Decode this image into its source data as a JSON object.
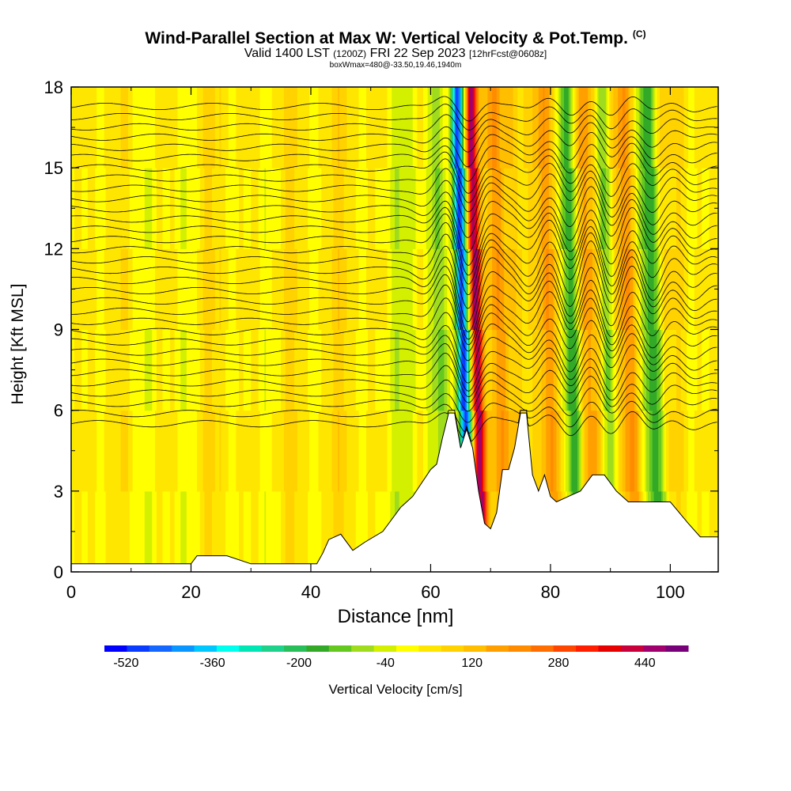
{
  "chart_data": {
    "type": "heatmap",
    "title": "Wind-Parallel Section at Max W: Vertical Velocity & Pot.Temp.",
    "title_mark": "(C)",
    "subtitle_main": "Valid 1400 LST",
    "subtitle_z": "(1200Z)",
    "subtitle_date": "FRI 22 Sep 2023",
    "subtitle_fcst": "[12hrFcst@0608z]",
    "subtitle2": "boxWmax=480@-33.50,19.46,1940m",
    "xlabel": "Distance [nm]",
    "ylabel": "Height [Kft MSL]",
    "xlim": [
      0,
      108
    ],
    "ylim": [
      0,
      18
    ],
    "xticks": [
      "0",
      "20",
      "40",
      "60",
      "80",
      "100"
    ],
    "yticks": [
      "0",
      "3",
      "6",
      "9",
      "12",
      "15",
      "18"
    ],
    "colorbar": {
      "label": "Vertical Velocity [cm/s]",
      "tick_labels": [
        "-520",
        "-360",
        "-200",
        "-40",
        "120",
        "280",
        "440"
      ],
      "bounds": [
        -560,
        520
      ],
      "colors": [
        "#0000ff",
        "#0a3cff",
        "#1468ff",
        "#0a96ff",
        "#00c8ff",
        "#00ffee",
        "#00e6b4",
        "#1ed28c",
        "#28be5a",
        "#32aa28",
        "#64c81e",
        "#a0dc1e",
        "#d2f000",
        "#ffff00",
        "#ffe600",
        "#ffd200",
        "#ffbe00",
        "#ffa000",
        "#ff8c00",
        "#ff6e00",
        "#ff4600",
        "#ff1e00",
        "#e60000",
        "#c8003c",
        "#a0006e",
        "#780078"
      ]
    },
    "terrain_profile": {
      "distance_nm": [
        0,
        20,
        21,
        26,
        30,
        33,
        41,
        42,
        43,
        45,
        47,
        49,
        52,
        55,
        57,
        60,
        61,
        62,
        63,
        64,
        65,
        66,
        67,
        68,
        69,
        70,
        71,
        72,
        73,
        74,
        75,
        76,
        77,
        78,
        79,
        80,
        81,
        83,
        85,
        87,
        89,
        91,
        93,
        95,
        97,
        100,
        103,
        105,
        108
      ],
      "height_kft": [
        0.3,
        0.3,
        0.6,
        0.6,
        0.3,
        0.3,
        0.3,
        0.7,
        1.2,
        1.4,
        0.8,
        1.1,
        1.5,
        2.4,
        2.8,
        3.8,
        4.0,
        5.0,
        5.9,
        5.9,
        4.6,
        5.3,
        4.6,
        3.0,
        1.8,
        1.6,
        2.2,
        3.8,
        3.8,
        4.6,
        5.9,
        5.9,
        3.6,
        3.0,
        3.6,
        2.8,
        2.6,
        2.8,
        3.0,
        3.6,
        3.6,
        3.0,
        2.6,
        2.6,
        2.6,
        2.6,
        1.8,
        1.3,
        1.3
      ]
    },
    "vertical_velocity_features": [
      {
        "name": "downdraft",
        "distance_nm": 65.5,
        "min_cm_s": -520
      },
      {
        "name": "updraft",
        "distance_nm": 67.8,
        "max_cm_s": 480
      },
      {
        "name": "downdraft",
        "distance_nm": 83.5,
        "min_cm_s": -200
      },
      {
        "name": "updraft",
        "distance_nm": 80,
        "max_cm_s": 160
      },
      {
        "name": "updraft",
        "distance_nm": 87,
        "max_cm_s": 160
      },
      {
        "name": "downdraft",
        "distance_nm": 89.5,
        "min_cm_s": -120
      },
      {
        "name": "updraft",
        "distance_nm": 93,
        "max_cm_s": 160
      },
      {
        "name": "downdraft",
        "distance_nm": 97,
        "min_cm_s": -200
      }
    ]
  }
}
